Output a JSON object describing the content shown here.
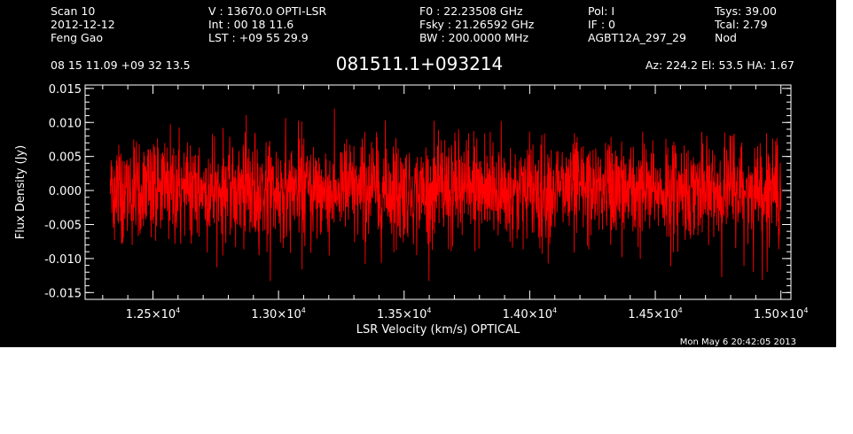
{
  "header": {
    "col1": [
      "Scan        10",
      "2012-12-12",
      "Feng Gao"
    ],
    "col2": [
      "V   :    13670.0 OPTI-LSR",
      "Int  :  00 18 11.6",
      "LST : +09 55 29.9"
    ],
    "col3": [
      "F0   :  22.23508 GHz",
      "Fsky :  21.26592 GHz",
      "BW   : 200.0000 MHz"
    ],
    "col4": [
      "Pol:      I",
      "IF :      0",
      "AGBT12A_297_29"
    ],
    "col5": [
      "Tsys:    39.00",
      "Tcal:      2.79",
      "Nod"
    ],
    "coords": "08 15 11.09   +09 32 13.5",
    "source": "081511.1+093214",
    "pointing": "Az: 224.2   El:  53.5   HA:  1.67",
    "timestamp": "Mon May  6 20:42:05 2013"
  },
  "chart_data": {
    "type": "line",
    "title": "081511.1+093214",
    "xlabel": "LSR Velocity (km/s) OPTICAL",
    "ylabel": "Flux Density (Jy)",
    "xlim": [
      12230,
      15040
    ],
    "ylim": [
      -0.016,
      0.0155
    ],
    "x_ticks": [
      12500,
      13000,
      13500,
      14000,
      14500,
      15000
    ],
    "x_tick_mantissa": [
      "1.25",
      "1.30",
      "1.35",
      "1.40",
      "1.45",
      "1.50"
    ],
    "x_tick_suffix": "×10",
    "x_tick_exponent": "4",
    "y_ticks": [
      0.015,
      0.01,
      0.005,
      0.0,
      -0.005,
      -0.01,
      -0.015
    ],
    "y_tick_labels": [
      "0.015",
      "0.010",
      "0.005",
      "0.000",
      "-0.005",
      "-0.010",
      "-0.015"
    ],
    "series": [
      {
        "color": "#ff0000",
        "x_start": 12330,
        "x_end": 15000,
        "mean": 0.0,
        "rms": 0.004,
        "min": -0.0133,
        "max": 0.0125,
        "values": [
          0.0015,
          -0.0042,
          0.0061,
          -0.0008,
          0.0032,
          -0.0055,
          0.0079,
          -0.0021,
          0.0009,
          -0.0068,
          0.0044,
          0.0012,
          -0.0035,
          0.0058,
          -0.0092,
          0.0026,
          -0.0011,
          0.0067,
          -0.0049,
          0.0003,
          0.0038,
          -0.0074,
          0.0085,
          -0.0016,
          0.0022,
          -0.0059,
          0.0047,
          -0.0028,
          0.0071,
          -0.0083,
          0.0018,
          0.0055,
          -0.0039,
          0.0007,
          -0.0064,
          0.0092,
          -0.0025,
          0.0034,
          -0.0101,
          0.0049,
          0.0013,
          -0.0046,
          0.0062,
          -0.0018,
          0.0028,
          -0.0072,
          0.0081,
          -0.0005,
          0.0041,
          -0.0057,
          0.0016,
          -0.0088,
          0.0066,
          -0.0031,
          0.0024,
          0.0073,
          -0.0052,
          0.0009,
          -0.0069,
          0.0037
        ]
      }
    ]
  }
}
